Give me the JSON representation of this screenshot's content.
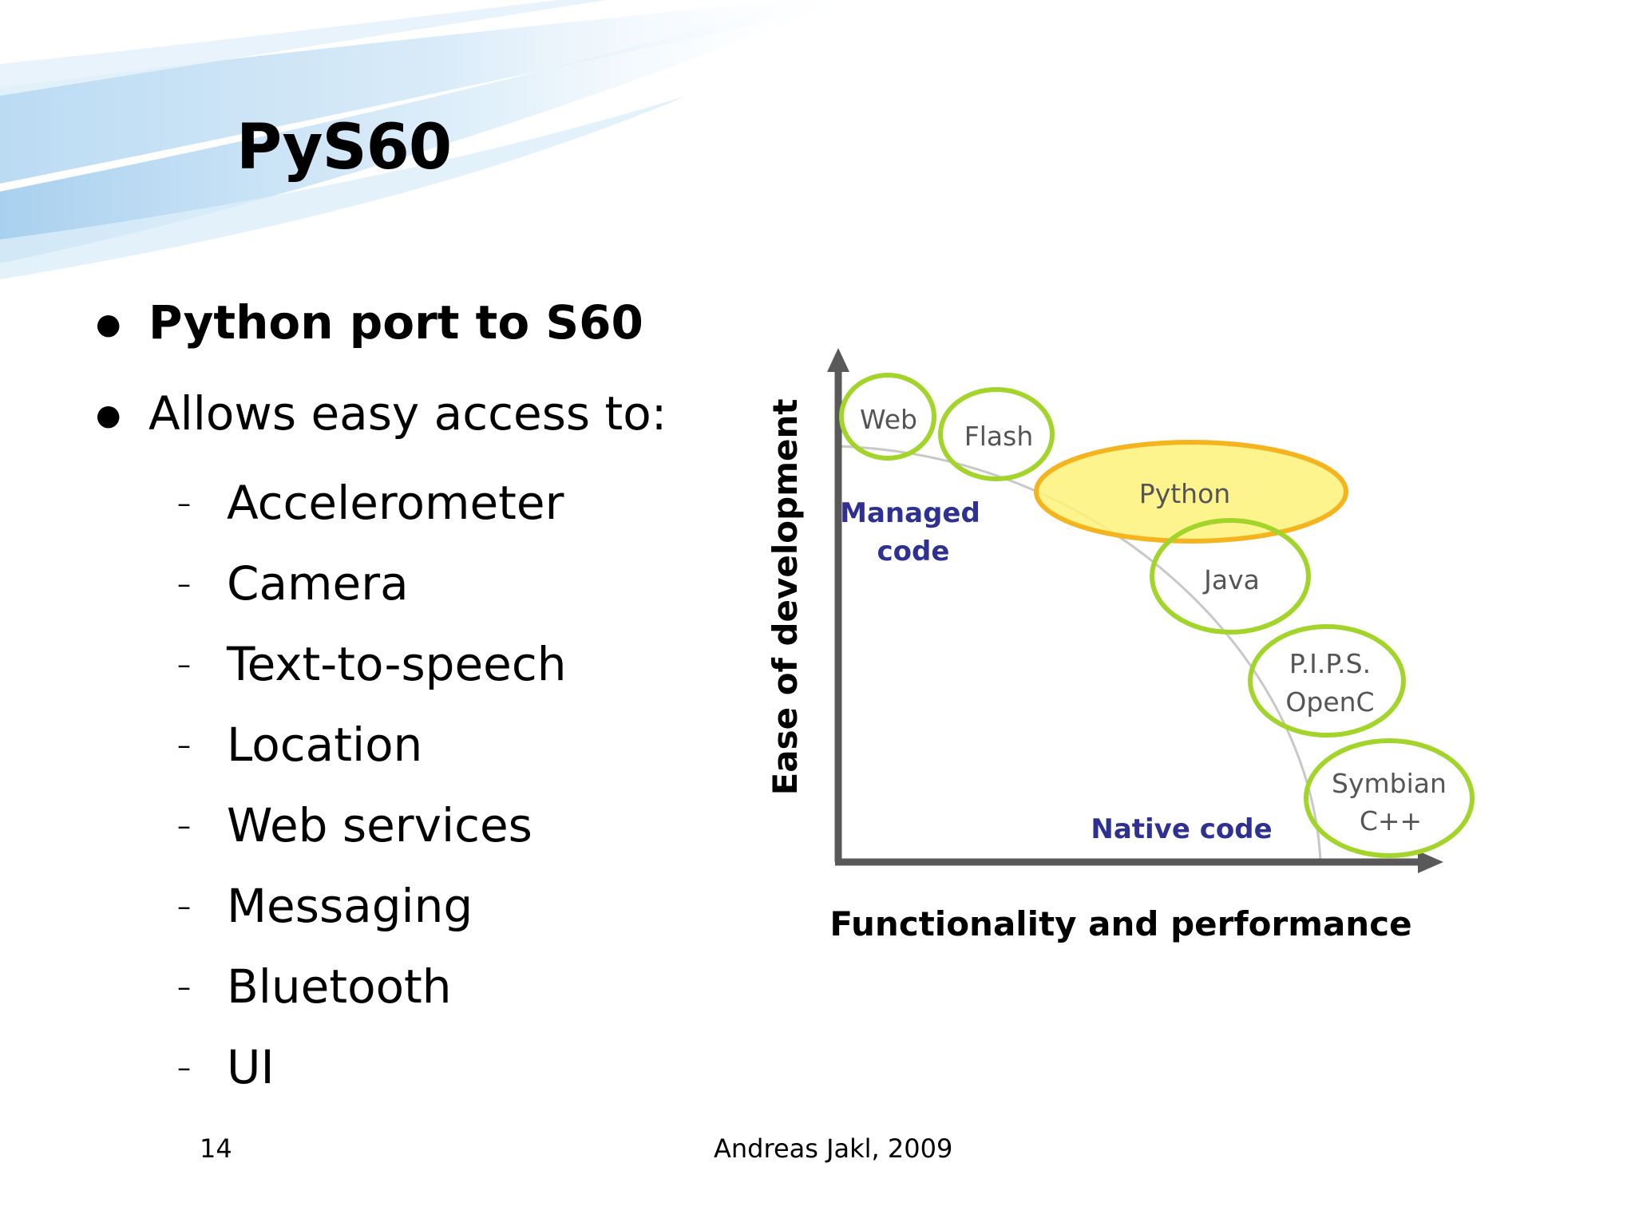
{
  "slide": {
    "title": "PyS60",
    "bullets": [
      {
        "text": "Python port to S60",
        "bold": true
      },
      {
        "text": "Allows easy access to:",
        "bold": false
      }
    ],
    "sub_items": [
      "Accelerometer",
      "Camera",
      "Text-to-speech",
      "Location",
      "Web services",
      "Messaging",
      "Bluetooth",
      "UI"
    ],
    "page_number": "14",
    "author": "Andreas Jakl, 2009"
  },
  "diagram": {
    "y_axis_label": "Ease of development",
    "x_axis_label": "Functionality and performance",
    "region_labels": {
      "managed_line1": "Managed",
      "managed_line2": "code",
      "native": "Native code"
    },
    "nodes": {
      "web": "Web",
      "flash": "Flash",
      "python": "Python",
      "java": "Java",
      "pips_line1": "P.I.P.S.",
      "pips_line2": "OpenC",
      "symbian_line1": "Symbian",
      "symbian_line2": "C++"
    },
    "colors": {
      "ring_green": "#a3d42a",
      "python_fill": "#fdf27a",
      "python_stroke": "#f5b41e",
      "region_blue": "#2e3192",
      "axis_gray": "#595959"
    }
  }
}
